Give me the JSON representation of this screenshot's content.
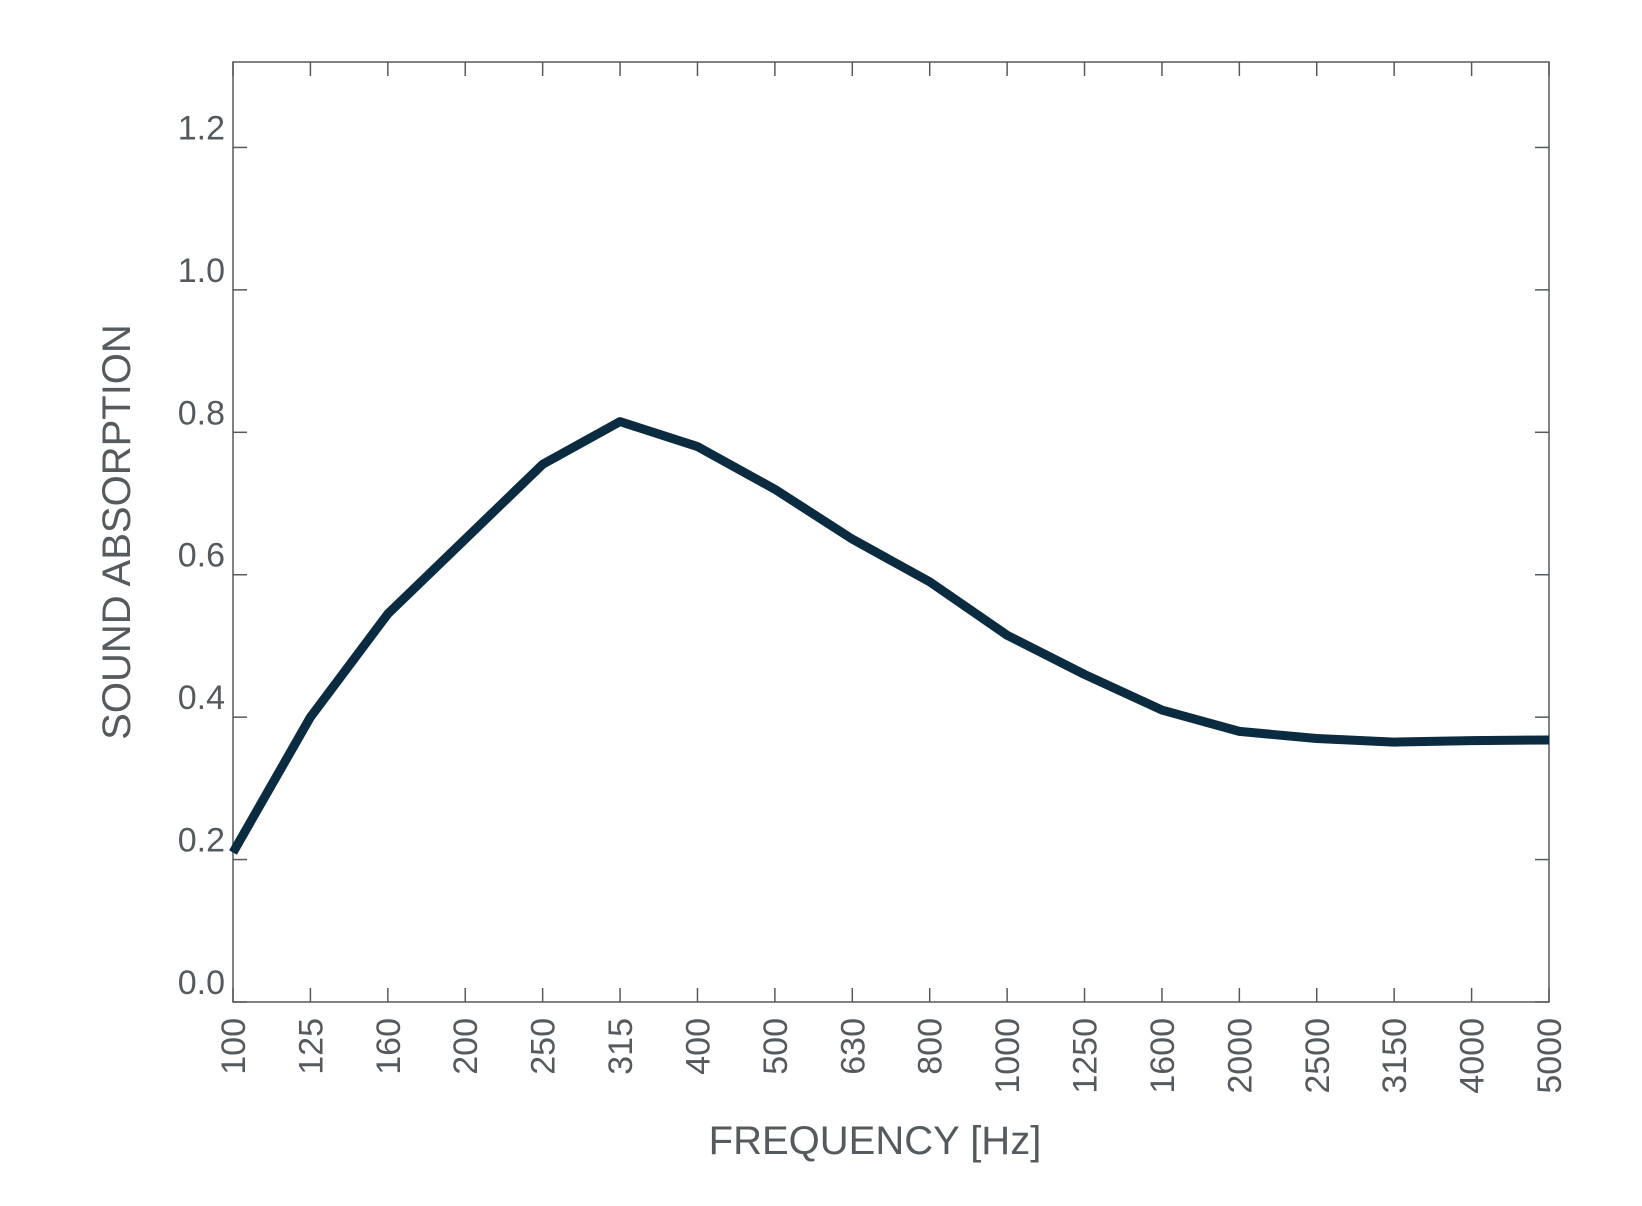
{
  "chart_data": {
    "type": "line",
    "xlabel": "FREQUENCY [Hz]",
    "ylabel": "SOUND ABSORPTION",
    "categories": [
      "100",
      "125",
      "160",
      "200",
      "250",
      "315",
      "400",
      "500",
      "630",
      "800",
      "1000",
      "1250",
      "1600",
      "2000",
      "2500",
      "3150",
      "4000",
      "5000"
    ],
    "yticks": [
      "0.0",
      "0.2",
      "0.4",
      "0.6",
      "0.8",
      "1.0",
      "1.2"
    ],
    "ylim": [
      0,
      1.32
    ],
    "grid": false,
    "series": [
      {
        "values": [
          0.21,
          0.4,
          0.545,
          0.65,
          0.755,
          0.815,
          0.78,
          0.72,
          0.65,
          0.59,
          0.515,
          0.46,
          0.41,
          0.38,
          0.37,
          0.365,
          0.367,
          0.368
        ]
      }
    ],
    "colors": {
      "line": "#0b2b40",
      "axis": "#555a5e",
      "text": "#555a5e"
    }
  }
}
